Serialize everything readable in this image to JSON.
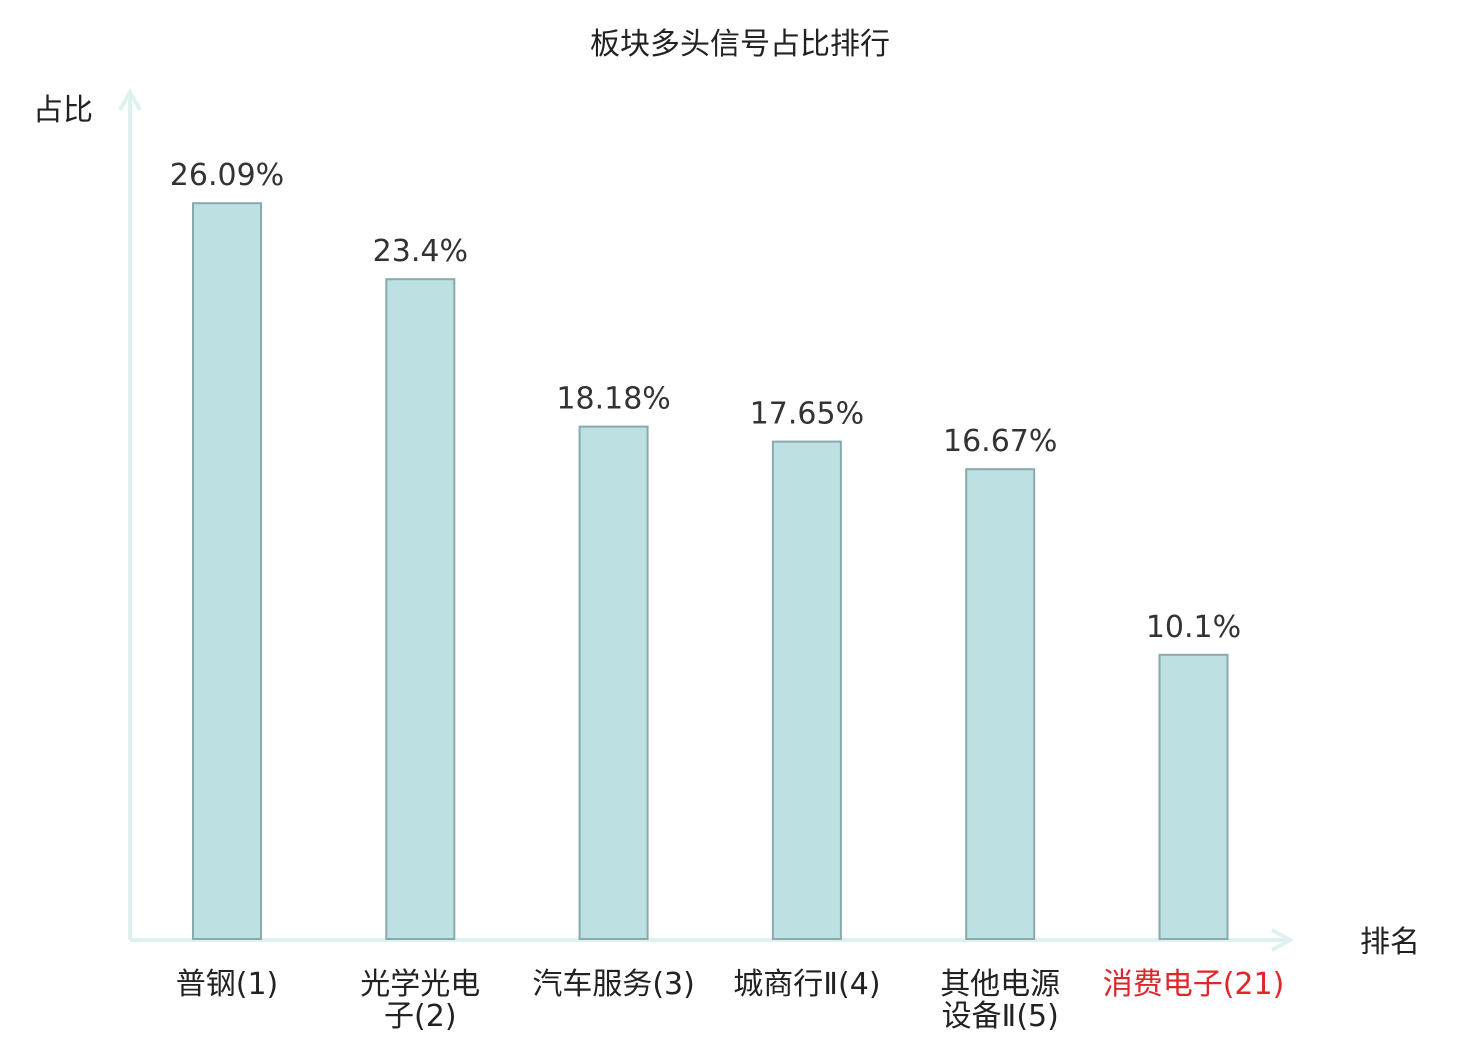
{
  "chart_data": {
    "type": "bar",
    "title": "板块多头信号占比排行",
    "xlabel": "排名",
    "ylabel": "占比",
    "categories": [
      {
        "lines": [
          "普钢(1)"
        ],
        "highlight": false
      },
      {
        "lines": [
          "光学光电",
          "子(2)"
        ],
        "highlight": false
      },
      {
        "lines": [
          "汽车服务(3)"
        ],
        "highlight": false
      },
      {
        "lines": [
          "城商行Ⅱ(4)"
        ],
        "highlight": false
      },
      {
        "lines": [
          "其他电源",
          "设备Ⅱ(5)"
        ],
        "highlight": false
      },
      {
        "lines": [
          "消费电子(21)"
        ],
        "highlight": true
      }
    ],
    "values": [
      26.09,
      23.4,
      18.18,
      17.65,
      16.67,
      10.1
    ],
    "value_labels": [
      "26.09%",
      "23.4%",
      "18.18%",
      "17.65%",
      "16.67%",
      "10.1%"
    ],
    "ylim": [
      0,
      30
    ],
    "grid": false,
    "legend": "none",
    "colors": {
      "bar_fill": "#bde1e3",
      "bar_stroke": "#8aa9ac",
      "axis": "#dff1ef",
      "text": "#333333",
      "highlight_text": "#e0262b"
    }
  }
}
